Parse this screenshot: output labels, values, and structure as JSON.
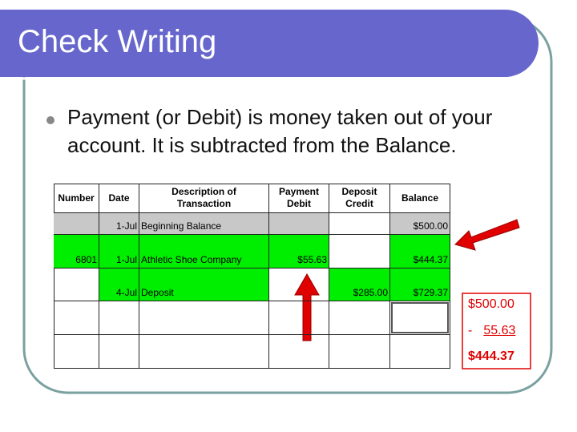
{
  "header": {
    "title": "Check Writing"
  },
  "bullet": {
    "lines": [
      "Payment (or Debit) is money taken out of your",
      "account.  It is subtracted from the Balance."
    ]
  },
  "table": {
    "headers": [
      [
        "Number"
      ],
      [
        "Date"
      ],
      [
        "Description of",
        "Transaction"
      ],
      [
        "Payment",
        "Debit"
      ],
      [
        "Deposit",
        "Credit"
      ],
      [
        "Balance"
      ]
    ],
    "rows": [
      [
        null,
        "1-Jul",
        "Beginning Balance",
        null,
        null,
        "$500.00"
      ],
      [
        "6801",
        "1-Jul",
        "Athletic Shoe Company",
        "$55.63",
        null,
        "$444.37"
      ],
      [
        null,
        "4-Jul",
        "Deposit",
        null,
        "$285.00",
        "$729.37"
      ],
      [
        null,
        null,
        null,
        null,
        null,
        null
      ],
      [
        null,
        null,
        null,
        null,
        null,
        null
      ]
    ]
  },
  "calculation": {
    "start": "$500.00",
    "sign": "-",
    "amount": "55.63",
    "result": "$444.37"
  }
}
